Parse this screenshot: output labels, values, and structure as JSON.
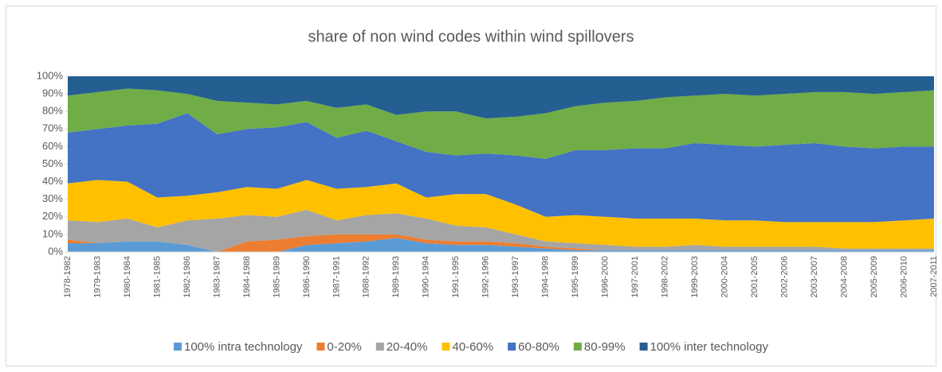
{
  "chart_data": {
    "type": "stacked-area",
    "title": "share of non wind codes within wind spillovers",
    "categories": [
      "1978-1982",
      "1979-1983",
      "1980-1984",
      "1981-1985",
      "1982-1986",
      "1983-1987",
      "1984-1988",
      "1985-1989",
      "1986-1990",
      "1987-1991",
      "1988-1992",
      "1989-1993",
      "1990-1994",
      "1991-1995",
      "1992-1996",
      "1993-1997",
      "1994-1998",
      "1995-1999",
      "1996-2000",
      "1997-2001",
      "1998-2002",
      "1999-2003",
      "2000-2004",
      "2001-2005",
      "2002-2006",
      "2003-2007",
      "2004-2008",
      "2005-2009",
      "2006-2010",
      "2007-2011"
    ],
    "series": [
      {
        "name": "100% intra technology",
        "color": "#5b9bd5",
        "values": [
          5,
          5,
          6,
          6,
          4,
          0,
          0,
          0,
          4,
          5,
          6,
          8,
          5,
          4,
          4,
          3,
          2,
          1,
          1,
          1,
          1,
          1,
          1,
          1,
          1,
          1,
          1,
          1,
          1,
          1
        ]
      },
      {
        "name": "0-20%",
        "color": "#ed7d31",
        "values": [
          2,
          0,
          0,
          0,
          0,
          0,
          6,
          7,
          5,
          5,
          4,
          2,
          2,
          2,
          2,
          2,
          1,
          1,
          0,
          0,
          0,
          0,
          0,
          0,
          0,
          0,
          0,
          0,
          0,
          0
        ]
      },
      {
        "name": "20-40%",
        "color": "#a5a5a5",
        "values": [
          11,
          12,
          13,
          8,
          14,
          19,
          15,
          13,
          15,
          8,
          11,
          12,
          12,
          9,
          8,
          5,
          3,
          3,
          3,
          2,
          2,
          3,
          2,
          2,
          2,
          2,
          1,
          1,
          1,
          1
        ]
      },
      {
        "name": "40-60%",
        "color": "#ffc000",
        "values": [
          21,
          24,
          21,
          17,
          14,
          15,
          16,
          16,
          17,
          18,
          16,
          17,
          12,
          18,
          19,
          17,
          14,
          16,
          16,
          16,
          16,
          15,
          15,
          15,
          14,
          14,
          15,
          15,
          16,
          17
        ]
      },
      {
        "name": "60-80%",
        "color": "#4472c4",
        "values": [
          29,
          29,
          32,
          42,
          47,
          33,
          33,
          35,
          33,
          29,
          32,
          24,
          26,
          22,
          23,
          28,
          33,
          37,
          38,
          40,
          40,
          43,
          43,
          42,
          44,
          45,
          43,
          42,
          42,
          41
        ]
      },
      {
        "name": "80-99%",
        "color": "#70ad47",
        "values": [
          21,
          21,
          21,
          19,
          11,
          19,
          15,
          13,
          12,
          17,
          15,
          15,
          23,
          25,
          20,
          22,
          26,
          25,
          27,
          27,
          29,
          27,
          29,
          29,
          29,
          29,
          31,
          31,
          31,
          32
        ]
      },
      {
        "name": "100% inter technology",
        "color": "#255e91",
        "values": [
          11,
          9,
          7,
          8,
          10,
          14,
          15,
          16,
          14,
          18,
          16,
          22,
          20,
          20,
          24,
          23,
          21,
          17,
          15,
          14,
          12,
          11,
          10,
          11,
          10,
          9,
          9,
          10,
          9,
          8
        ]
      }
    ],
    "ylim": [
      0,
      100
    ],
    "yticks": [
      {
        "value": 0,
        "label": "0%"
      },
      {
        "value": 10,
        "label": "10%"
      },
      {
        "value": 20,
        "label": "20%"
      },
      {
        "value": 30,
        "label": "30%"
      },
      {
        "value": 40,
        "label": "40%"
      },
      {
        "value": 50,
        "label": "50%"
      },
      {
        "value": 60,
        "label": "60%"
      },
      {
        "value": 70,
        "label": "70%"
      },
      {
        "value": 80,
        "label": "80%"
      },
      {
        "value": 90,
        "label": "90%"
      },
      {
        "value": 100,
        "label": "100%"
      }
    ],
    "legend": "bottom"
  }
}
